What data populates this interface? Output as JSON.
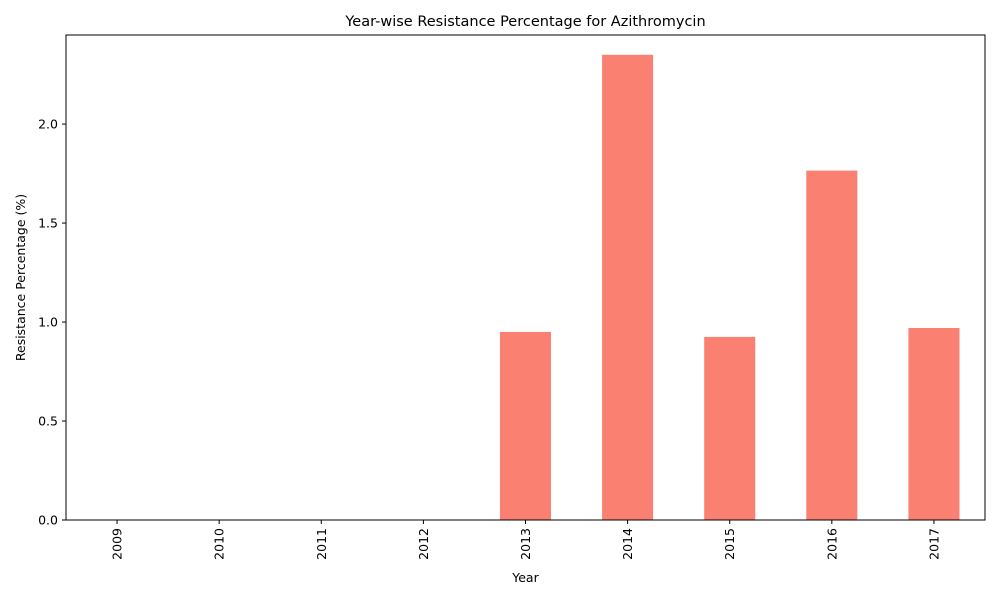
{
  "chart_data": {
    "type": "bar",
    "title": "Year-wise Resistance Percentage for Azithromycin",
    "xlabel": "Year",
    "ylabel": "Resistance Percentage (%)",
    "categories": [
      "2009",
      "2010",
      "2011",
      "2012",
      "2013",
      "2014",
      "2015",
      "2016",
      "2017"
    ],
    "values": [
      0,
      0,
      0,
      0,
      0.95,
      2.35,
      0.925,
      1.765,
      0.97
    ],
    "ylim": [
      0,
      2.45
    ],
    "yticks": [
      "0.0",
      "0.5",
      "1.0",
      "1.5",
      "2.0"
    ],
    "bar_color": "#fa8072",
    "grid": false,
    "legend": "none"
  }
}
